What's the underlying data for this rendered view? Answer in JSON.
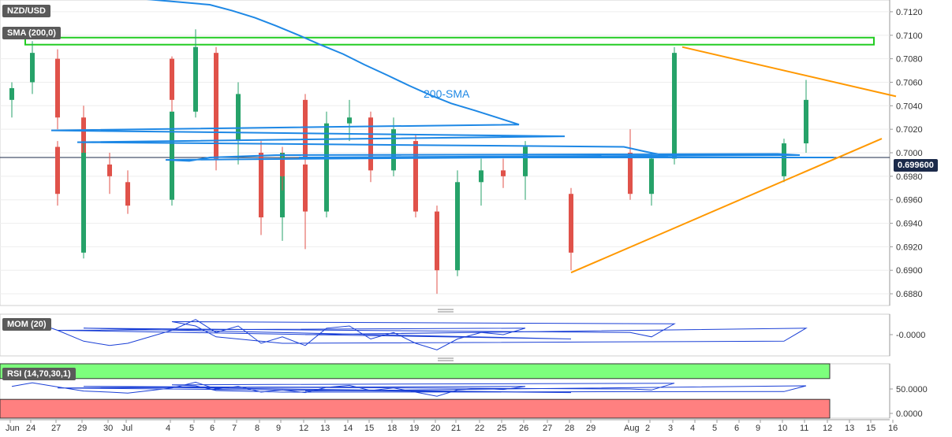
{
  "labels": {
    "symbol": "NZD/USD",
    "sma": "SMA (200,0)",
    "mom": "MOM (20)",
    "rsi": "RSI (14,70,30,1)",
    "sma_annotation": "200-SMA",
    "last_price": "0.699600"
  },
  "colors": {
    "up": "#26a269",
    "down": "#e0524a",
    "sma": "#1e88e5",
    "trend": "#ff9800",
    "resistance_box": "#22cc22",
    "rsi_ob_zone": "#7dff7d",
    "rsi_os_zone": "#ff8080",
    "osc_line": "#1a3fd6"
  },
  "chart_data": [
    {
      "type": "candlestick",
      "title": "NZD/USD",
      "ylim": [
        0.687,
        0.713
      ],
      "y_ticks": [
        "0.7120",
        "0.7100",
        "0.7080",
        "0.7060",
        "0.7040",
        "0.7020",
        "0.7000",
        "0.6980",
        "0.6960",
        "0.6940",
        "0.6920",
        "0.6900",
        "0.6880"
      ],
      "x_ticks": [
        "Jun",
        "24",
        "27",
        "29",
        "30",
        "Jul",
        "4",
        "5",
        "6",
        "7",
        "8",
        "9",
        "12",
        "13",
        "14",
        "15",
        "18",
        "19",
        "20",
        "21",
        "22",
        "25",
        "26",
        "27",
        "28",
        "29",
        "Aug",
        "2",
        "3",
        "4",
        "5",
        "6",
        "9",
        "10",
        "11",
        "12",
        "13",
        "15",
        "16"
      ],
      "last_price": 0.6996,
      "sma_200": [
        0.7131,
        0.7126,
        0.7121,
        0.7115,
        0.7108,
        0.71,
        0.7092,
        0.7084,
        0.7075,
        0.7066,
        0.7057,
        0.7049,
        0.7042,
        0.7036,
        0.703,
        0.7024,
        0.7019,
        0.7014,
        0.7009,
        0.7005,
        0.7001,
        0.6997,
        0.6994,
        0.6993,
        0.6996,
        0.6998,
        0.6999,
        0.6998,
        0.6996,
        0.6996
      ],
      "sma_200_x": [
        "5",
        "6",
        "7",
        "8",
        "9",
        "12",
        "13",
        "14",
        "15",
        "18",
        "19",
        "20",
        "21",
        "22",
        "25",
        "26",
        "27",
        "28",
        "29",
        "Aug",
        "2",
        "3",
        "4",
        "5",
        "6",
        "9",
        "10",
        "11",
        "12",
        "12.5"
      ],
      "resistance_zone": [
        0.7092,
        0.7098
      ],
      "triangle_lower": {
        "from": [
          "28",
          0.6898
        ],
        "to": [
          "16",
          0.7012
        ]
      },
      "triangle_upper": {
        "from": [
          "3.5",
          0.709
        ],
        "to": [
          "16",
          0.7048
        ]
      },
      "candles": [
        {
          "x": "Jun",
          "o": 0.7045,
          "h": 0.706,
          "l": 0.703,
          "c": 0.7055
        },
        {
          "x": "24",
          "o": 0.706,
          "h": 0.7095,
          "l": 0.705,
          "c": 0.7085
        },
        {
          "x": "27",
          "o": 0.708,
          "h": 0.7088,
          "l": 0.702,
          "c": 0.703
        },
        {
          "x": "29",
          "o": 0.703,
          "h": 0.704,
          "l": 0.698,
          "c": 0.699
        },
        {
          "x": "30",
          "o": 0.699,
          "h": 0.7,
          "l": 0.6965,
          "c": 0.698
        },
        {
          "x": "Jul",
          "o": 0.6975,
          "h": 0.6985,
          "l": 0.6948,
          "c": 0.6955
        },
        {
          "x": "4",
          "o": 0.696,
          "h": 0.704,
          "l": 0.6955,
          "c": 0.7035
        },
        {
          "x": "5",
          "o": 0.7035,
          "h": 0.7105,
          "l": 0.703,
          "c": 0.709
        },
        {
          "x": "6",
          "o": 0.7085,
          "h": 0.709,
          "l": 0.6995,
          "c": 0.701
        },
        {
          "x": "7",
          "o": 0.701,
          "h": 0.706,
          "l": 0.699,
          "c": 0.705
        },
        {
          "x": "8",
          "o": 0.7,
          "h": 0.701,
          "l": 0.693,
          "c": 0.6945
        },
        {
          "x": "9",
          "o": 0.6945,
          "h": 0.7005,
          "l": 0.6925,
          "c": 0.7
        },
        {
          "x": "12",
          "o": 0.699,
          "h": 0.6995,
          "l": 0.6918,
          "c": 0.695
        },
        {
          "x": "13",
          "o": 0.695,
          "h": 0.7035,
          "l": 0.6945,
          "c": 0.7025
        },
        {
          "x": "14",
          "o": 0.7025,
          "h": 0.7045,
          "l": 0.701,
          "c": 0.703
        },
        {
          "x": "15",
          "o": 0.703,
          "h": 0.7035,
          "l": 0.6975,
          "c": 0.6985
        },
        {
          "x": "18",
          "o": 0.6985,
          "h": 0.703,
          "l": 0.698,
          "c": 0.702
        },
        {
          "x": "19",
          "o": 0.701,
          "h": 0.7015,
          "l": 0.6945,
          "c": 0.695
        },
        {
          "x": "20",
          "o": 0.695,
          "h": 0.6955,
          "l": 0.688,
          "c": 0.69
        },
        {
          "x": "21",
          "o": 0.69,
          "h": 0.6985,
          "l": 0.6895,
          "c": 0.6975
        },
        {
          "x": "22",
          "o": 0.6975,
          "h": 0.6995,
          "l": 0.6955,
          "c": 0.6985
        },
        {
          "x": "25",
          "o": 0.6985,
          "h": 0.6995,
          "l": 0.697,
          "c": 0.698
        },
        {
          "x": "26",
          "o": 0.698,
          "h": 0.701,
          "l": 0.696,
          "c": 0.7005
        },
        {
          "x": "27",
          "o": 0.7005,
          "h": 0.701,
          "l": 0.6955,
          "c": 0.6965
        },
        {
          "x": "28",
          "o": 0.6965,
          "h": 0.697,
          "l": 0.69,
          "c": 0.6915
        },
        {
          "x": "29",
          "o": 0.6915,
          "h": 0.701,
          "l": 0.691,
          "c": 0.7
        },
        {
          "x": "Aug",
          "o": 0.7,
          "h": 0.702,
          "l": 0.696,
          "c": 0.6965
        },
        {
          "x": "2",
          "o": 0.6965,
          "h": 0.7,
          "l": 0.6955,
          "c": 0.6995
        },
        {
          "x": "3",
          "o": 0.6995,
          "h": 0.709,
          "l": 0.699,
          "c": 0.7085
        },
        {
          "x": "4",
          "o": 0.708,
          "h": 0.7082,
          "l": 0.7035,
          "c": 0.7045
        },
        {
          "x": "5",
          "o": 0.7045,
          "h": 0.707,
          "l": 0.7035,
          "c": 0.7055
        },
        {
          "x": "6",
          "o": 0.705,
          "h": 0.7055,
          "l": 0.6985,
          "c": 0.6995
        },
        {
          "x": "9",
          "o": 0.6995,
          "h": 0.7005,
          "l": 0.6968,
          "c": 0.698
        },
        {
          "x": "10",
          "o": 0.698,
          "h": 0.7012,
          "l": 0.6975,
          "c": 0.7008
        },
        {
          "x": "11",
          "o": 0.7008,
          "h": 0.7062,
          "l": 0.7,
          "c": 0.7045
        },
        {
          "x": "12",
          "o": 0.7045,
          "h": 0.705,
          "l": 0.699,
          "c": 0.6996
        }
      ]
    },
    {
      "type": "line",
      "title": "MOM (20)",
      "y_ticks": [
        "-0.0000"
      ],
      "values": [
        0.004,
        0.006,
        0.002,
        -0.003,
        -0.005,
        -0.004,
        0.002,
        0.007,
        0.001,
        0.004,
        -0.004,
        -0.001,
        -0.005,
        0.003,
        0.004,
        -0.002,
        0.001,
        -0.004,
        -0.007,
        -0.002,
        0.001,
        0.0,
        0.003,
        0.002,
        -0.002,
        0.003,
        0.001,
        -0.001,
        0.005,
        0.006,
        0.004,
        -0.001,
        -0.004,
        -0.003,
        0.003,
        0.0
      ]
    },
    {
      "type": "line",
      "title": "RSI (14,70,30,1)",
      "y_ticks": [
        "50.0000",
        "0.0000"
      ],
      "ylim": [
        0,
        100
      ],
      "overbought": 70,
      "oversold": 30,
      "values": [
        55,
        62,
        54,
        46,
        44,
        42,
        52,
        63,
        50,
        55,
        44,
        48,
        43,
        53,
        57,
        47,
        52,
        44,
        36,
        48,
        51,
        49,
        55,
        52,
        43,
        55,
        50,
        48,
        61,
        58,
        56,
        47,
        44,
        45,
        56,
        46
      ]
    }
  ]
}
